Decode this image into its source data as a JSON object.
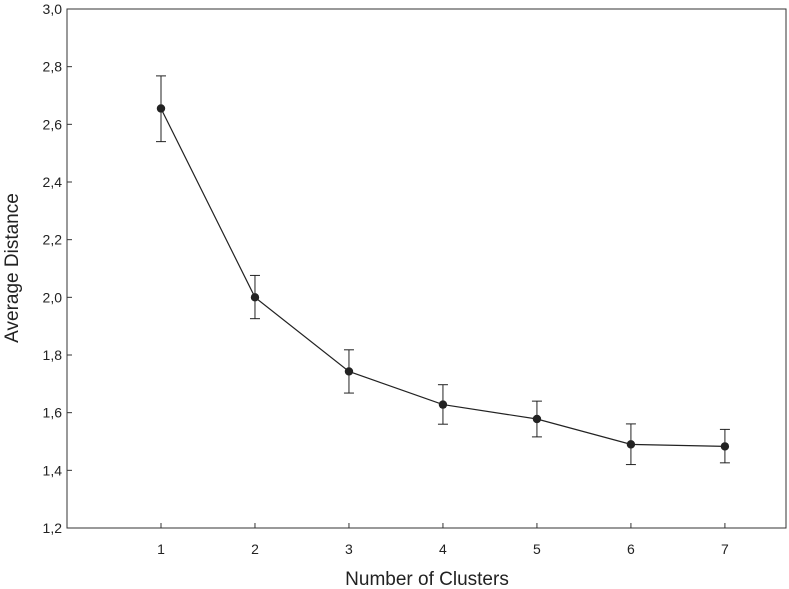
{
  "chart_data": {
    "type": "line",
    "title": "",
    "xlabel": "Number of Clusters",
    "ylabel": "Average Distance",
    "x": [
      1,
      2,
      3,
      4,
      5,
      6,
      7
    ],
    "xticks": [
      "1",
      "2",
      "3",
      "4",
      "5",
      "6",
      "7"
    ],
    "xlim": [
      0.0,
      7.65
    ],
    "ylim": [
      1.2,
      3.0
    ],
    "yticks": [
      1.2,
      1.4,
      1.6,
      1.8,
      2.0,
      2.2,
      2.4,
      2.6,
      2.8,
      3.0
    ],
    "ytick_labels": [
      "1,2",
      "1,4",
      "1,6",
      "1,8",
      "2,0",
      "2,2",
      "2,4",
      "2,6",
      "2,8",
      "3,0"
    ],
    "series": [
      {
        "values": [
          2.655,
          2.0,
          1.743,
          1.628,
          1.578,
          1.49,
          1.483
        ],
        "error_upper": [
          2.768,
          2.076,
          1.818,
          1.697,
          1.64,
          1.561,
          1.542
        ],
        "error_lower": [
          2.54,
          1.926,
          1.668,
          1.56,
          1.516,
          1.42,
          1.426
        ],
        "color": "#222222",
        "marker": "circle"
      }
    ],
    "grid": false,
    "legend": "none"
  }
}
